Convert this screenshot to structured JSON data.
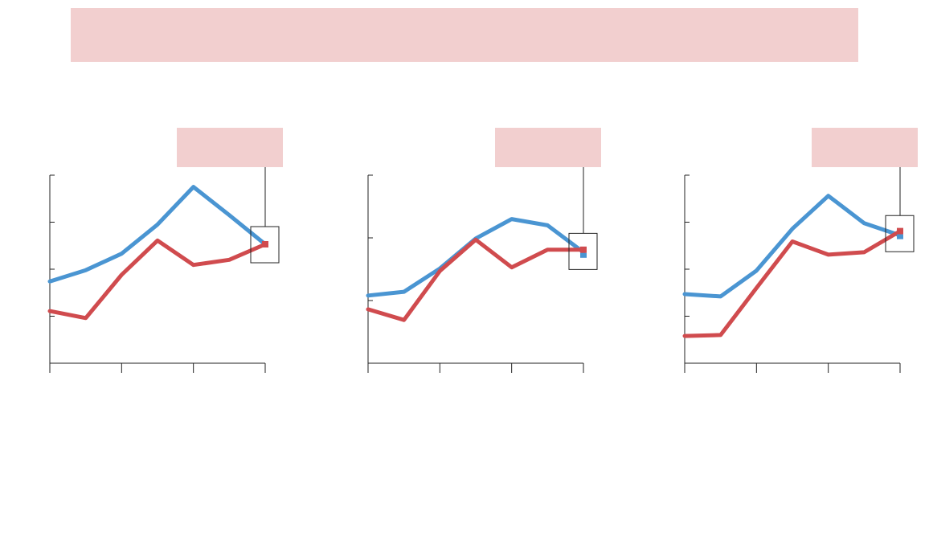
{
  "header": {
    "banner_color": "#f2cfcf"
  },
  "colors": {
    "blue": "#4a95d2",
    "red": "#d04b4e",
    "axis": "#222222",
    "label_box": "#f2cfcf"
  },
  "chart_data": [
    {
      "type": "line",
      "title": "",
      "x": [
        0,
        1,
        2,
        3,
        4,
        5,
        6
      ],
      "xlim": [
        0,
        6
      ],
      "ylim": [
        0,
        4
      ],
      "xticks": [
        0,
        2,
        4,
        6
      ],
      "yticks": [
        0,
        1,
        2,
        3,
        4
      ],
      "series": [
        {
          "color": "#4a95d2",
          "values": [
            1.74,
            1.98,
            2.33,
            2.95,
            3.75,
            3.15,
            2.53
          ]
        },
        {
          "color": "#d04b4e",
          "values": [
            1.11,
            0.96,
            1.88,
            2.61,
            2.09,
            2.2,
            2.53
          ]
        }
      ],
      "endpoint_markers": [
        "red"
      ]
    },
    {
      "type": "line",
      "title": "",
      "x": [
        0,
        1,
        2,
        3,
        4,
        5,
        6
      ],
      "xlim": [
        0,
        6
      ],
      "ylim": [
        0,
        3
      ],
      "xticks": [
        0,
        2,
        4,
        6
      ],
      "yticks": [
        0,
        1,
        2,
        3
      ],
      "series": [
        {
          "color": "#4a95d2",
          "values": [
            1.08,
            1.14,
            1.51,
            1.99,
            2.3,
            2.2,
            1.77
          ]
        },
        {
          "color": "#d04b4e",
          "values": [
            0.86,
            0.69,
            1.47,
            1.97,
            1.53,
            1.81,
            1.81
          ]
        }
      ],
      "endpoint_markers": [
        "red",
        "blue"
      ]
    },
    {
      "type": "line",
      "title": "",
      "x": [
        0,
        1,
        2,
        3,
        4,
        5,
        6
      ],
      "xlim": [
        0,
        6
      ],
      "ylim": [
        0,
        4
      ],
      "xticks": [
        0,
        2,
        4,
        6
      ],
      "yticks": [
        0,
        1,
        2,
        3,
        4
      ],
      "series": [
        {
          "color": "#4a95d2",
          "values": [
            1.47,
            1.42,
            1.97,
            2.86,
            3.56,
            2.98,
            2.72
          ]
        },
        {
          "color": "#d04b4e",
          "values": [
            0.58,
            0.6,
            1.6,
            2.59,
            2.31,
            2.36,
            2.81
          ]
        }
      ],
      "endpoint_markers": [
        "red",
        "blue"
      ]
    }
  ]
}
